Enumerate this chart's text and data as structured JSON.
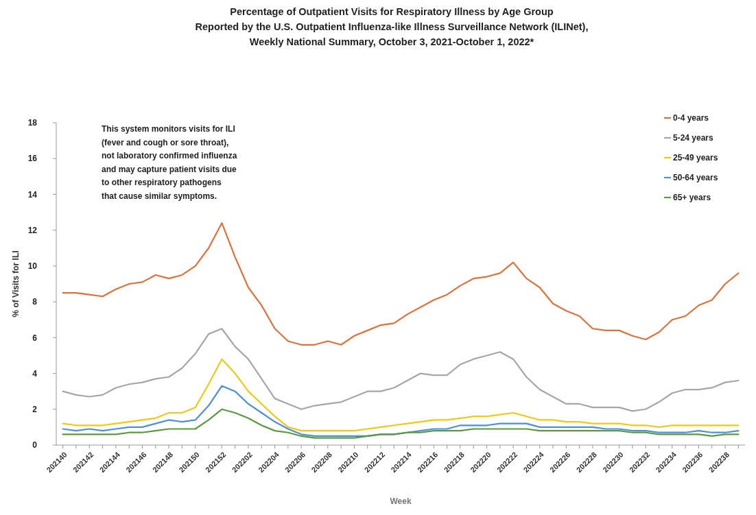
{
  "chart_data": {
    "type": "line",
    "title": "Percentage of Outpatient Visits for Respiratory Illness by Age Group\nReported by the U.S. Outpatient Influenza-like Illness Surveillance Network (ILINet),\nWeekly National Summary, October 3, 2021-October 1, 2022*",
    "xlabel": "Week",
    "ylabel": "% of Visits for ILI",
    "annotations": [
      "This system monitors visits for ILI\n(fever and cough or sore throat),\nnot laboratory confirmed influenza\nand may capture patient visits due\nto other respiratory pathogens\nthat cause similar symptoms."
    ],
    "categories": [
      "202140",
      null,
      "202142",
      null,
      "202144",
      null,
      "202146",
      null,
      "202148",
      null,
      "202150",
      null,
      "202152",
      null,
      "202202",
      null,
      "202204",
      null,
      "202206",
      null,
      "202208",
      null,
      "202210",
      null,
      "202212",
      null,
      "202214",
      null,
      "202216",
      null,
      "202218",
      null,
      "202220",
      null,
      "202222",
      null,
      "202224",
      null,
      "202226",
      null,
      "202228",
      null,
      "202230",
      null,
      "202232",
      null,
      "202234",
      null,
      "202236",
      null,
      "202238",
      null
    ],
    "ylim": [
      0,
      18
    ],
    "yticks": [
      0,
      2,
      4,
      6,
      8,
      10,
      12,
      14,
      16,
      18
    ],
    "grid": false,
    "legend": "top right",
    "marker": "none",
    "line_style": "solid",
    "series": [
      {
        "name": "0-4 years",
        "color": "#e2703a",
        "values": [
          8.5,
          8.5,
          8.4,
          8.3,
          8.7,
          9.0,
          9.1,
          9.5,
          9.3,
          9.5,
          10.0,
          11.0,
          12.4,
          10.5,
          8.8,
          7.8,
          6.5,
          5.8,
          5.6,
          5.6,
          5.8,
          5.6,
          6.1,
          6.4,
          6.7,
          6.8,
          7.3,
          7.7,
          8.1,
          8.4,
          8.9,
          9.3,
          9.4,
          9.6,
          10.2,
          9.3,
          8.8,
          7.9,
          7.5,
          7.2,
          6.5,
          6.4,
          6.4,
          6.1,
          5.9,
          6.3,
          7.0,
          7.2,
          7.8,
          8.1,
          9.0,
          9.6
        ]
      },
      {
        "name": "5-24 years",
        "color": "#a6a6a6",
        "values": [
          3.0,
          2.8,
          2.7,
          2.8,
          3.2,
          3.4,
          3.5,
          3.7,
          3.8,
          4.3,
          5.1,
          6.2,
          6.5,
          5.5,
          4.8,
          3.7,
          2.6,
          2.3,
          2.0,
          2.2,
          2.3,
          2.4,
          2.7,
          3.0,
          3.0,
          3.2,
          3.6,
          4.0,
          3.9,
          3.9,
          4.5,
          4.8,
          5.0,
          5.2,
          4.8,
          3.8,
          3.1,
          2.7,
          2.3,
          2.3,
          2.1,
          2.1,
          2.1,
          1.9,
          2.0,
          2.4,
          2.9,
          3.1,
          3.1,
          3.2,
          3.5,
          3.6
        ]
      },
      {
        "name": "25-49 years",
        "color": "#f2c811",
        "values": [
          1.2,
          1.1,
          1.1,
          1.1,
          1.2,
          1.3,
          1.4,
          1.5,
          1.8,
          1.8,
          2.1,
          3.4,
          4.8,
          4.0,
          3.0,
          2.3,
          1.6,
          1.0,
          0.8,
          0.8,
          0.8,
          0.8,
          0.8,
          0.9,
          1.0,
          1.1,
          1.2,
          1.3,
          1.4,
          1.4,
          1.5,
          1.6,
          1.6,
          1.7,
          1.8,
          1.6,
          1.4,
          1.4,
          1.3,
          1.3,
          1.2,
          1.2,
          1.2,
          1.1,
          1.1,
          1.0,
          1.1,
          1.1,
          1.1,
          1.1,
          1.1,
          1.1
        ]
      },
      {
        "name": "50-64 years",
        "color": "#4a8fe0",
        "values": [
          0.9,
          0.8,
          0.9,
          0.8,
          0.9,
          1.0,
          1.0,
          1.2,
          1.4,
          1.3,
          1.4,
          2.2,
          3.3,
          3.0,
          2.3,
          1.8,
          1.3,
          0.9,
          0.6,
          0.5,
          0.5,
          0.5,
          0.5,
          0.5,
          0.6,
          0.6,
          0.7,
          0.8,
          0.9,
          0.9,
          1.1,
          1.1,
          1.1,
          1.2,
          1.2,
          1.2,
          1.0,
          1.0,
          1.0,
          1.0,
          1.0,
          0.9,
          0.9,
          0.8,
          0.8,
          0.7,
          0.7,
          0.7,
          0.8,
          0.7,
          0.7,
          0.8
        ]
      },
      {
        "name": "65+ years",
        "color": "#5b9a3c",
        "values": [
          0.6,
          0.6,
          0.6,
          0.6,
          0.6,
          0.7,
          0.7,
          0.8,
          0.9,
          0.9,
          0.9,
          1.4,
          2.0,
          1.8,
          1.5,
          1.1,
          0.8,
          0.7,
          0.5,
          0.4,
          0.4,
          0.4,
          0.4,
          0.5,
          0.6,
          0.6,
          0.7,
          0.7,
          0.8,
          0.8,
          0.8,
          0.9,
          0.9,
          0.9,
          0.9,
          0.9,
          0.8,
          0.8,
          0.8,
          0.8,
          0.8,
          0.8,
          0.8,
          0.7,
          0.7,
          0.6,
          0.6,
          0.6,
          0.6,
          0.5,
          0.6,
          0.6
        ]
      }
    ]
  }
}
